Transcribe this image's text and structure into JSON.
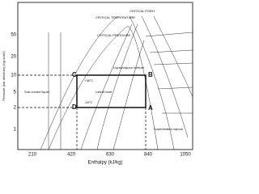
{
  "axes": {
    "y_title": "Pressure (bar absolute) (log scale)",
    "x_title": "Enthalpy (kJ/kg)",
    "y_ticks": [
      "50",
      "20",
      "10",
      "5",
      "2",
      "1"
    ],
    "x_ticks": [
      "210",
      "420",
      "630",
      "840",
      "1050"
    ]
  },
  "points": {
    "c": "C",
    "b": "B",
    "d": "D",
    "a": "A"
  },
  "labels": {
    "subcooled": "Sub-cooled liquid",
    "latent": "Latent heat",
    "mixture": "Liquid/vapour mixture",
    "superheated": "Superheated vapour",
    "hot": "+38°C",
    "cold": "-18°C",
    "crit_temp": "CRITICAL TEMPERATURE",
    "crit_point": "CRITICAL POINT",
    "crit_pressure": "CRITICAL PRESSURE"
  }
}
